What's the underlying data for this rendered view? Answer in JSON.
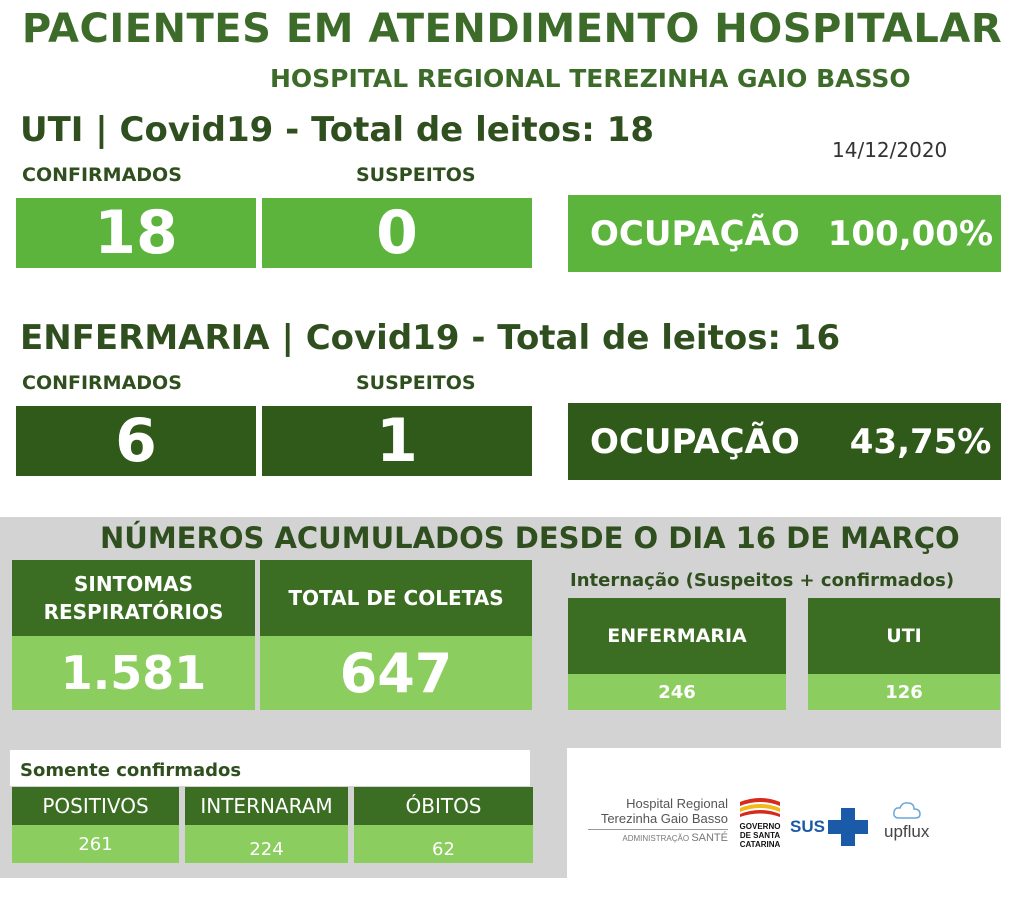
{
  "header": {
    "title": "PACIENTES EM ATENDIMENTO HOSPITALAR",
    "subtitle": "HOSPITAL REGIONAL TEREZINHA GAIO BASSO",
    "date": "14/12/2020"
  },
  "uti": {
    "heading": "UTI | Covid19 - Total de leitos: 18",
    "confirmed_label": "CONFIRMADOS",
    "suspected_label": "SUSPEITOS",
    "confirmed_value": "18",
    "suspected_value": "0",
    "occupancy_label": "OCUPAÇÃO",
    "occupancy_value": "100,00%"
  },
  "enfermaria": {
    "heading": "ENFERMARIA | Covid19 - Total de leitos: 16",
    "confirmed_label": "CONFIRMADOS",
    "suspected_label": "SUSPEITOS",
    "confirmed_value": "6",
    "suspected_value": "1",
    "occupancy_label": "OCUPAÇÃO",
    "occupancy_value": "43,75%"
  },
  "accumulated": {
    "title": "NÚMEROS ACUMULADOS DESDE O DIA 16 DE MARÇO",
    "respiratory_label_1": "SINTOMAS",
    "respiratory_label_2": "RESPIRATÓRIOS",
    "respiratory_value": "1.581",
    "collections_label": "TOTAL DE COLETAS",
    "collections_value": "647",
    "internacao_title": "Internação (Suspeitos + confirmados)",
    "enfermaria_label": "ENFERMARIA",
    "enfermaria_value": "246",
    "uti_label": "UTI",
    "uti_value": "126"
  },
  "confirmed_only": {
    "title": "Somente confirmados",
    "positives_label": "POSITIVOS",
    "positives_value": "261",
    "hospitalized_label": "INTERNARAM",
    "hospitalized_value": "224",
    "deaths_label": "ÓBITOS",
    "deaths_value": "62"
  },
  "logos": {
    "hospital_line1": "Hospital Regional",
    "hospital_line2": "Terezinha Gaio Basso",
    "hospital_admin": "ADMINISTRAÇÃO",
    "hospital_admin_brand": "SANTÉ",
    "gov_line1": "GOVERNO",
    "gov_line2": "DE SANTA",
    "gov_line3": "CATARINA",
    "sus": "SUS",
    "upflux": "upflux"
  },
  "colors": {
    "light_green": "#5db43d",
    "dark_green": "#2f5a19",
    "pale_green": "#8ccd5f",
    "header_green": "#3b6d22",
    "title_green": "#3d6b2a"
  }
}
